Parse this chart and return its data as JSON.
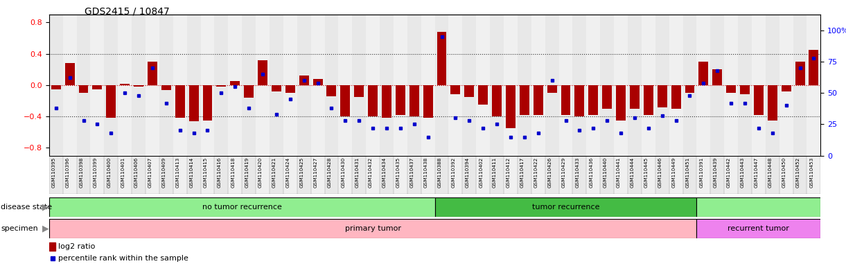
{
  "title": "GDS2415 / 10847",
  "samples": [
    "GSM110395",
    "GSM110396",
    "GSM110398",
    "GSM110399",
    "GSM110400",
    "GSM110401",
    "GSM110406",
    "GSM110407",
    "GSM110409",
    "GSM110413",
    "GSM110414",
    "GSM110415",
    "GSM110416",
    "GSM110418",
    "GSM110419",
    "GSM110420",
    "GSM110421",
    "GSM110424",
    "GSM110425",
    "GSM110427",
    "GSM110428",
    "GSM110430",
    "GSM110431",
    "GSM110432",
    "GSM110434",
    "GSM110435",
    "GSM110437",
    "GSM110438",
    "GSM110388",
    "GSM110392",
    "GSM110394",
    "GSM110402",
    "GSM110411",
    "GSM110412",
    "GSM110417",
    "GSM110422",
    "GSM110426",
    "GSM110429",
    "GSM110433",
    "GSM110436",
    "GSM110440",
    "GSM110441",
    "GSM110444",
    "GSM110445",
    "GSM110446",
    "GSM110449",
    "GSM110451",
    "GSM110391",
    "GSM110439",
    "GSM110442",
    "GSM110443",
    "GSM110447",
    "GSM110448",
    "GSM110450",
    "GSM110452",
    "GSM110453"
  ],
  "log2_ratio": [
    -0.05,
    0.28,
    -0.1,
    -0.05,
    -0.42,
    0.02,
    -0.02,
    0.3,
    -0.06,
    -0.42,
    -0.46,
    -0.45,
    -0.02,
    0.05,
    -0.16,
    0.32,
    -0.08,
    -0.1,
    0.12,
    0.08,
    -0.14,
    -0.4,
    -0.15,
    -0.4,
    -0.42,
    -0.38,
    -0.4,
    -0.42,
    0.68,
    -0.12,
    -0.15,
    -0.25,
    -0.4,
    -0.55,
    -0.38,
    -0.38,
    -0.1,
    -0.38,
    -0.4,
    -0.38,
    -0.3,
    -0.45,
    -0.3,
    -0.38,
    -0.28,
    -0.3,
    -0.1,
    0.3,
    0.2,
    -0.1,
    -0.12,
    -0.38,
    -0.45,
    -0.08,
    0.3,
    0.45
  ],
  "percentile": [
    38,
    62,
    28,
    25,
    18,
    50,
    48,
    70,
    42,
    20,
    18,
    20,
    50,
    55,
    38,
    65,
    33,
    45,
    60,
    58,
    38,
    28,
    28,
    22,
    22,
    22,
    25,
    15,
    95,
    30,
    28,
    22,
    25,
    15,
    15,
    18,
    60,
    28,
    20,
    22,
    28,
    18,
    30,
    22,
    32,
    28,
    48,
    58,
    68,
    42,
    42,
    22,
    18,
    40,
    70,
    78
  ],
  "disease_state_groups": [
    {
      "label": "no tumor recurrence",
      "start": 0,
      "end": 28,
      "color": "#90EE90"
    },
    {
      "label": "tumor recurrence",
      "start": 28,
      "end": 47,
      "color": "#44BB44"
    },
    {
      "label": "",
      "start": 47,
      "end": 56,
      "color": "#90EE90"
    }
  ],
  "specimen_groups": [
    {
      "label": "primary tumor",
      "start": 0,
      "end": 47,
      "color": "#FFB6C1"
    },
    {
      "label": "recurrent tumor",
      "start": 47,
      "end": 56,
      "color": "#EE82EE"
    }
  ],
  "bar_color": "#AA0000",
  "dot_color": "#0000CC",
  "ylim_left": [
    -0.9,
    0.9
  ],
  "ylim_right": [
    0,
    112.5
  ],
  "yticks_left": [
    -0.8,
    -0.4,
    0.0,
    0.4,
    0.8
  ],
  "yticks_right": [
    0,
    25,
    50,
    75,
    100
  ],
  "hlines": [
    -0.4,
    0.0,
    0.4
  ],
  "background_color": "#ffffff",
  "col_colors": [
    "#E8E8E8",
    "#F0F0F0"
  ]
}
